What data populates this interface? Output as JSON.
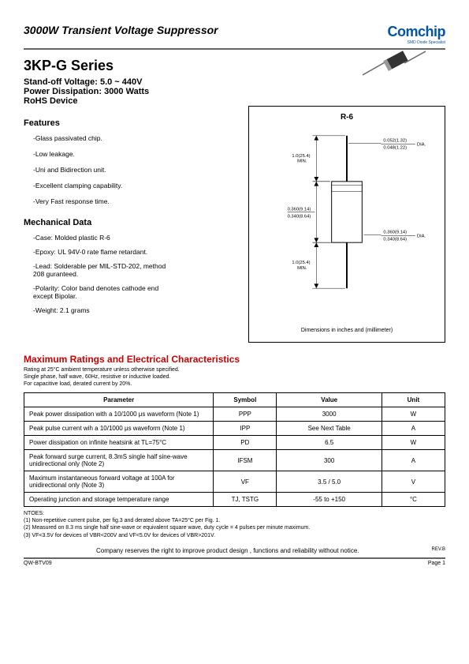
{
  "header": {
    "title": "3000W Transient Voltage Suppressor",
    "logo": "Comchip",
    "logo_sub": "SMD Diode Specialist"
  },
  "series": {
    "name": "3KP-G Series",
    "standoff": "Stand-off Voltage: 5.0 ~ 440V",
    "power": "Power Dissipation: 3000 Watts",
    "rohs": "RoHS Device"
  },
  "features": {
    "title": "Features",
    "items": [
      "-Glass passivated chip.",
      "-Low leakage.",
      "-Uni and Bidirection unit.",
      "-Excellent clamping capability.",
      "-Very Fast response time."
    ]
  },
  "mechanical": {
    "title": "Mechanical Data",
    "items": [
      "-Case: Molded plastic R-6",
      "-Epoxy: UL 94V-0 rate flame retardant.",
      "-Lead: Solderable per MIL-STD-202, method 208 guranteed.",
      "-Polarity: Color band denotes cathode end except Bipolar.",
      "-Weight: 2.1 grams"
    ]
  },
  "diagram": {
    "title": "R-6",
    "dim1": "0.052(1.32)",
    "dim1b": "0.048(1.22)",
    "dim1_suffix": "DIA.",
    "dim2": "1.0(25.4)",
    "dim2b": "MIN.",
    "dim3": "0.360(9.14)",
    "dim3b": "0.340(8.64)",
    "dim4": "0.360(9.14)",
    "dim4b": "0.340(8.64)",
    "dim4_suffix": "DIA.",
    "dim5": "1.0(25.4)",
    "dim5b": "MIN.",
    "caption": "Dimensions in inches and (millimeter)"
  },
  "ratings": {
    "title": "Maximum Ratings and Electrical Characteristics",
    "sub1": "Rating at 25°C ambient temperature unless otherwise specified.",
    "sub2": "Single phase, half wave, 60Hz, resistive or inductive loaded.",
    "sub3": "For capacitive load, derated current by 20%.",
    "columns": [
      "Parameter",
      "Symbol",
      "Value",
      "Unit"
    ],
    "rows": [
      [
        "Peak power dissipation with a 10/1000 μs waveform (Note 1)",
        "PPP",
        "3000",
        "W"
      ],
      [
        "Peak pulse current wih a 10/1000 μs waveform (Note 1)",
        "IPP",
        "See Next Table",
        "A"
      ],
      [
        "Power dissipation on infinite heatsink at TL=75°C",
        "PD",
        "6.5",
        "W"
      ],
      [
        "Peak forward surge current, 8.3mS single half sine-wave unidirectional only (Note 2)",
        "IFSM",
        "300",
        "A"
      ],
      [
        "Maximum instantaneous forward voltage at 100A for unidirectional only (Note 3)",
        "VF",
        "3.5 / 5.0",
        "V"
      ],
      [
        "Operating junction and storage temperature range",
        "TJ, TSTG",
        "-55 to +150",
        "°C"
      ]
    ]
  },
  "notes": {
    "title": "NTOES:",
    "items": [
      "(1) Non-repetitive current pulse, per fig.3 and derated above TA=25°C per Fig. 1.",
      "(2) Measured on 8.3 ms single half sine-wave or equivalent square wave, duty cycle = 4 pulses per minute maximum.",
      "(3) VF<3.5V for devices of VBR<200V and VF<5.0V for devices of VBR>201V."
    ]
  },
  "footer": {
    "disclaimer": "Company reserves the right to improve product design , functions and reliability without notice.",
    "rev": "REV.B",
    "doc": "QW-BTV09",
    "page": "Page 1"
  }
}
